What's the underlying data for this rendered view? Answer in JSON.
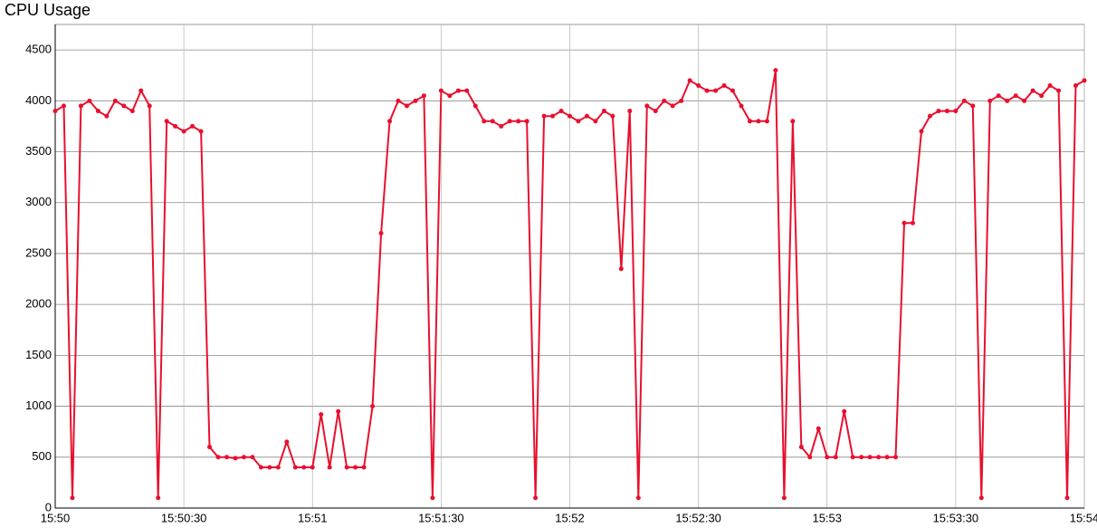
{
  "chart_data": {
    "type": "line",
    "title": "CPU Usage",
    "x": [
      "15:50:00",
      "15:50:02",
      "15:50:04",
      "15:50:06",
      "15:50:08",
      "15:50:10",
      "15:50:12",
      "15:50:14",
      "15:50:16",
      "15:50:18",
      "15:50:20",
      "15:50:22",
      "15:50:24",
      "15:50:26",
      "15:50:28",
      "15:50:30",
      "15:50:32",
      "15:50:34",
      "15:50:36",
      "15:50:38",
      "15:50:40",
      "15:50:42",
      "15:50:44",
      "15:50:46",
      "15:50:48",
      "15:50:50",
      "15:50:52",
      "15:50:54",
      "15:50:56",
      "15:50:58",
      "15:51:00",
      "15:51:02",
      "15:51:04",
      "15:51:06",
      "15:51:08",
      "15:51:10",
      "15:51:12",
      "15:51:14",
      "15:51:16",
      "15:51:18",
      "15:51:20",
      "15:51:22",
      "15:51:24",
      "15:51:26",
      "15:51:28",
      "15:51:30",
      "15:51:32",
      "15:51:34",
      "15:51:36",
      "15:51:38",
      "15:51:40",
      "15:51:42",
      "15:51:44",
      "15:51:46",
      "15:51:48",
      "15:51:50",
      "15:51:52",
      "15:51:54",
      "15:51:56",
      "15:51:58",
      "15:52:00",
      "15:52:02",
      "15:52:04",
      "15:52:06",
      "15:52:08",
      "15:52:10",
      "15:52:12",
      "15:52:14",
      "15:52:16",
      "15:52:18",
      "15:52:20",
      "15:52:22",
      "15:52:24",
      "15:52:26",
      "15:52:28",
      "15:52:30",
      "15:52:32",
      "15:52:34",
      "15:52:36",
      "15:52:38",
      "15:52:40",
      "15:52:42",
      "15:52:44",
      "15:52:46",
      "15:52:48",
      "15:52:50",
      "15:52:52",
      "15:52:54",
      "15:52:56",
      "15:52:58",
      "15:53:00",
      "15:53:02",
      "15:53:04",
      "15:53:06",
      "15:53:08",
      "15:53:10",
      "15:53:12",
      "15:53:14",
      "15:53:16",
      "15:53:18",
      "15:53:20",
      "15:53:22",
      "15:53:24",
      "15:53:26",
      "15:53:28",
      "15:53:30",
      "15:53:32",
      "15:53:34",
      "15:53:36",
      "15:53:38",
      "15:53:40",
      "15:53:42",
      "15:53:44",
      "15:53:46",
      "15:53:48",
      "15:53:50",
      "15:53:52",
      "15:53:54",
      "15:53:56",
      "15:53:58",
      "15:54:00"
    ],
    "series": [
      {
        "color": "#e8102e",
        "values": [
          3900,
          3950,
          100,
          3950,
          4000,
          3900,
          3850,
          4000,
          3950,
          3900,
          4100,
          3950,
          100,
          3800,
          3750,
          3700,
          3750,
          3700,
          600,
          500,
          500,
          490,
          500,
          500,
          400,
          400,
          400,
          650,
          400,
          400,
          400,
          920,
          400,
          950,
          400,
          400,
          400,
          1000,
          2700,
          3800,
          4000,
          3950,
          4000,
          4050,
          100,
          4100,
          4050,
          4100,
          4100,
          3950,
          3800,
          3800,
          3750,
          3800,
          3800,
          3800,
          100,
          3850,
          3850,
          3900,
          3850,
          3800,
          3850,
          3800,
          3900,
          3850,
          2350,
          3900,
          100,
          3950,
          3900,
          4000,
          3950,
          4000,
          4200,
          4150,
          4100,
          4100,
          4150,
          4100,
          3950,
          3800,
          3800,
          3800,
          4300,
          100,
          3800,
          600,
          500,
          780,
          500,
          500,
          950,
          500,
          500,
          500,
          500,
          500,
          500,
          2800,
          2800,
          3700,
          3850,
          3900,
          3900,
          3900,
          4000,
          3950,
          100,
          4000,
          4050,
          4000,
          4050,
          4000,
          4100,
          4050,
          4150,
          4100,
          100,
          4150,
          4200
        ]
      }
    ],
    "xlim": [
      "15:50:00",
      "15:54:00"
    ],
    "xticks": [
      {
        "value": "15:50:00",
        "label": "15:50"
      },
      "15:50:30",
      {
        "value": "15:51:00",
        "label": "15:51"
      },
      "15:51:30",
      {
        "value": "15:52:00",
        "label": "15:52"
      },
      "15:52:30",
      {
        "value": "15:53:00",
        "label": "15:53"
      },
      "15:53:30",
      {
        "value": "15:54:00",
        "label": "15:54"
      }
    ],
    "ylim": [
      0,
      4750
    ],
    "yticks": [
      0,
      500,
      1000,
      1500,
      2000,
      2500,
      3000,
      3500,
      4000,
      4500
    ],
    "grid": true
  }
}
